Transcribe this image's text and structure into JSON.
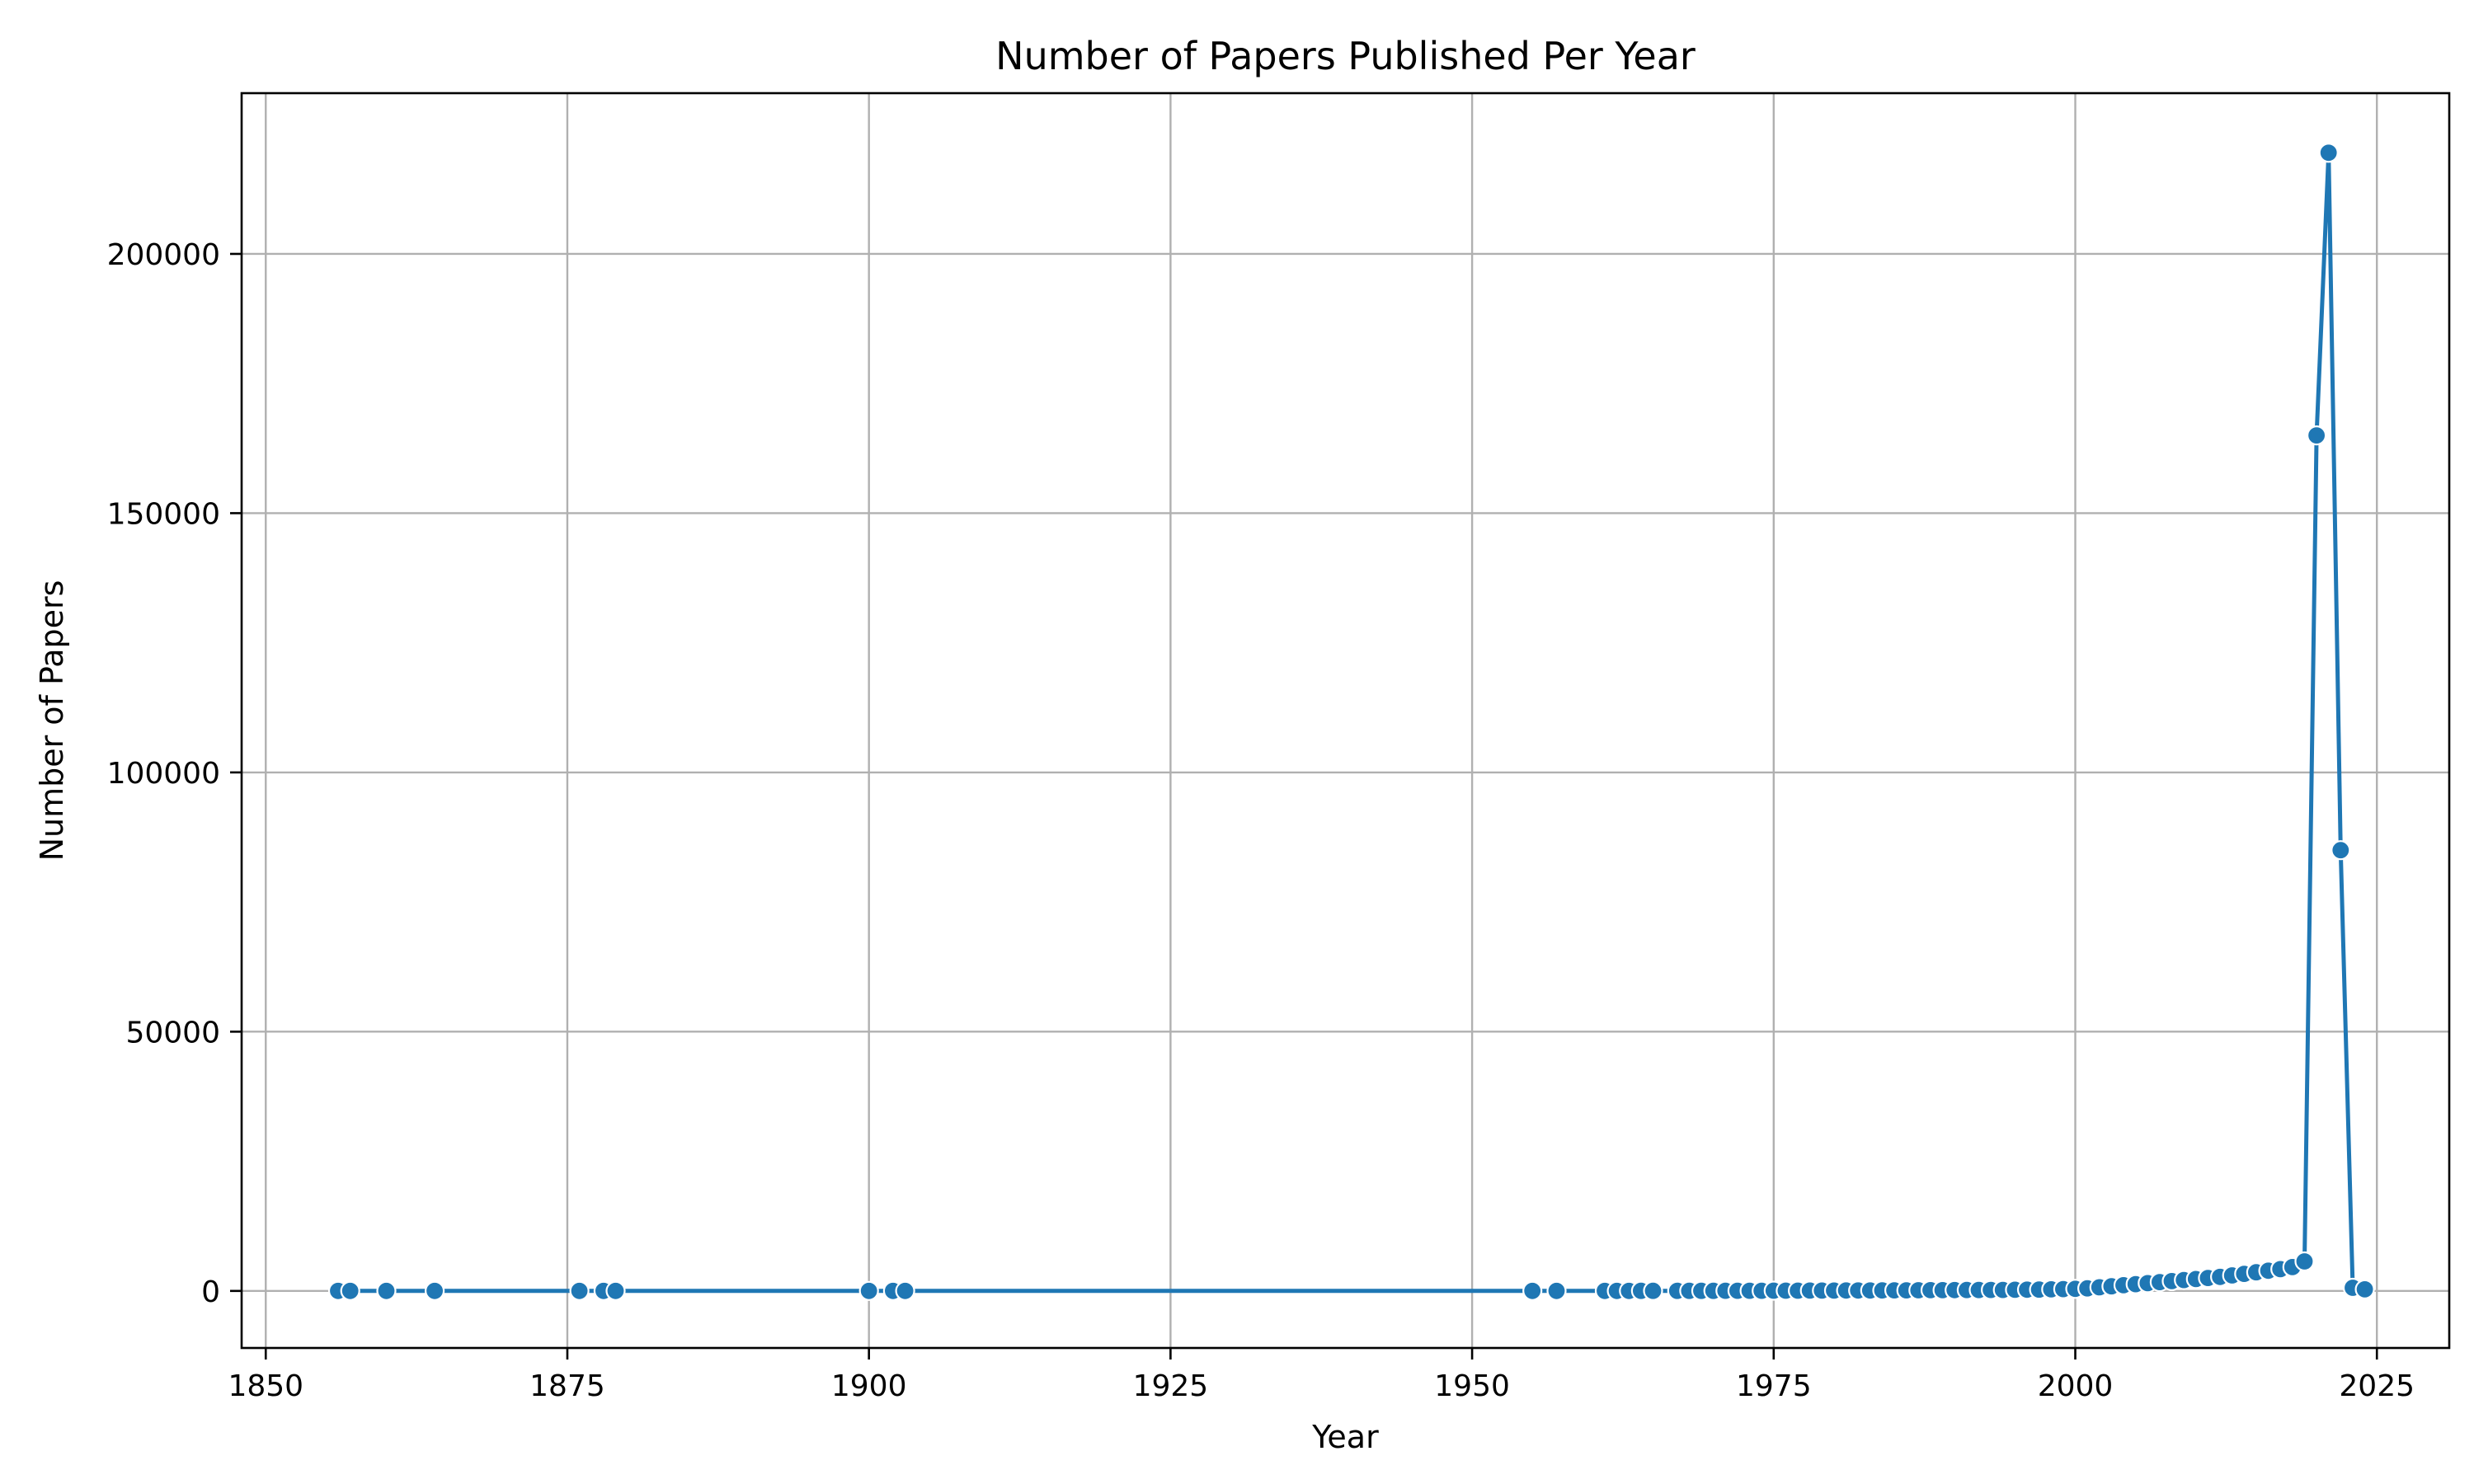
{
  "chart_data": {
    "type": "line",
    "title": "Number of Papers Published Per Year",
    "xlabel": "Year",
    "ylabel": "Number of Papers",
    "xlim": [
      1848,
      2031
    ],
    "ylim": [
      -11000,
      231000
    ],
    "xticks": [
      1850,
      1875,
      1900,
      1925,
      1950,
      1975,
      2000,
      2025
    ],
    "yticks": [
      0,
      50000,
      100000,
      150000,
      200000
    ],
    "grid": true,
    "legend": "none",
    "colors": {
      "series": "#1f77b4",
      "marker_edge": "#ffffff"
    },
    "series": [
      {
        "x": [
          1856,
          1857,
          1860,
          1864,
          1876,
          1878,
          1879,
          1900,
          1902,
          1903,
          1955,
          1957,
          1961,
          1962,
          1963,
          1964,
          1965,
          1967,
          1968,
          1969,
          1970,
          1971,
          1972,
          1973,
          1974,
          1975,
          1976,
          1977,
          1978,
          1979,
          1980,
          1981,
          1982,
          1983,
          1984,
          1985,
          1986,
          1987,
          1988,
          1989,
          1990,
          1991,
          1992,
          1993,
          1994,
          1995,
          1996,
          1997,
          1998,
          1999,
          2000,
          2001,
          2002,
          2003,
          2004,
          2005,
          2006,
          2007,
          2008,
          2009,
          2010,
          2011,
          2012,
          2013,
          2014,
          2015,
          2016,
          2017,
          2018,
          2019,
          2020,
          2021,
          2022,
          2023,
          2024
        ],
        "y": [
          2,
          3,
          2,
          2,
          2,
          3,
          2,
          3,
          2,
          2,
          3,
          4,
          6,
          8,
          10,
          12,
          15,
          18,
          20,
          22,
          25,
          28,
          30,
          35,
          40,
          45,
          50,
          55,
          60,
          65,
          70,
          75,
          80,
          90,
          100,
          110,
          120,
          130,
          140,
          150,
          160,
          170,
          180,
          190,
          200,
          220,
          240,
          260,
          300,
          350,
          400,
          500,
          700,
          900,
          1100,
          1300,
          1500,
          1700,
          1900,
          2100,
          2300,
          2500,
          2700,
          3000,
          3300,
          3600,
          3900,
          4200,
          4600,
          5700,
          165000,
          219500,
          85000,
          600,
          300
        ]
      }
    ]
  }
}
